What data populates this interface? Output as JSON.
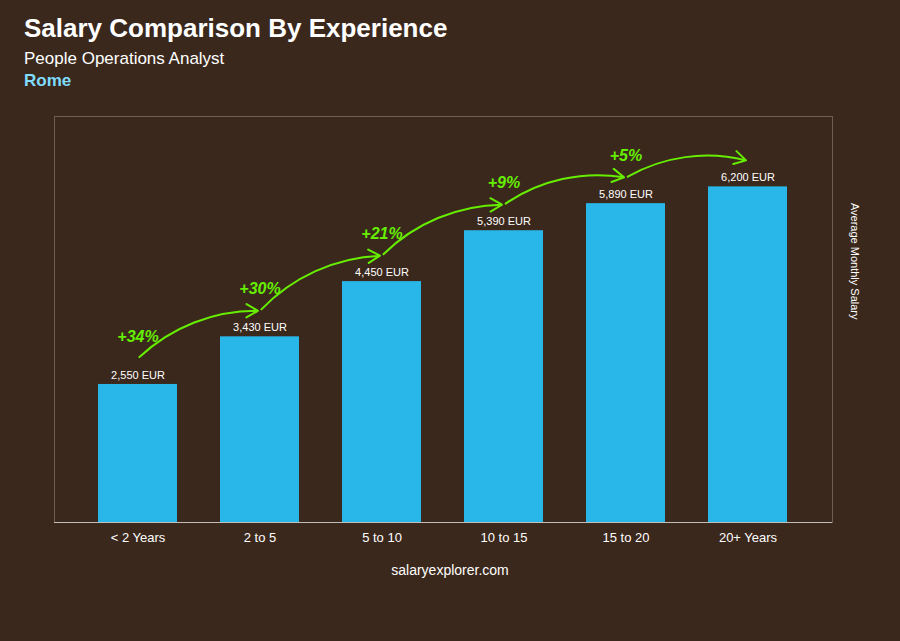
{
  "chart_data": {
    "type": "bar",
    "title": "Salary Comparison By Experience",
    "subtitle": "People Operations Analyst",
    "categories": [
      "< 2 Years",
      "2 to 5",
      "5 to 10",
      "10 to 15",
      "15 to 20",
      "20+ Years"
    ],
    "values": [
      2550,
      3430,
      4450,
      5390,
      5890,
      6200
    ],
    "value_labels": [
      "2,550 EUR",
      "3,430 EUR",
      "4,450 EUR",
      "5,390 EUR",
      "5,890 EUR",
      "6,200 EUR"
    ],
    "data_labels": true,
    "color": "#29b6e8",
    "ylabel": "Average Monthly Salary",
    "ylim": [
      0,
      7500
    ],
    "tick_labels": "x",
    "grid": false,
    "annotations": [
      {
        "text": "Rome"
      },
      {
        "text": "+34%",
        "from": "< 2 Years",
        "to": "2 to 5",
        "color": "#66ee00"
      },
      {
        "text": "+30%",
        "from": "2 to 5",
        "to": "5 to 10",
        "color": "#66ee00"
      },
      {
        "text": "+21%",
        "from": "5 to 10",
        "to": "10 to 15",
        "color": "#66ee00"
      },
      {
        "text": "+9%",
        "from": "10 to 15",
        "to": "15 to 20",
        "color": "#66ee00"
      },
      {
        "text": "+5%",
        "from": "15 to 20",
        "to": "20+ Years",
        "color": "#66ee00"
      }
    ],
    "caption": "salaryexplorer.com"
  }
}
